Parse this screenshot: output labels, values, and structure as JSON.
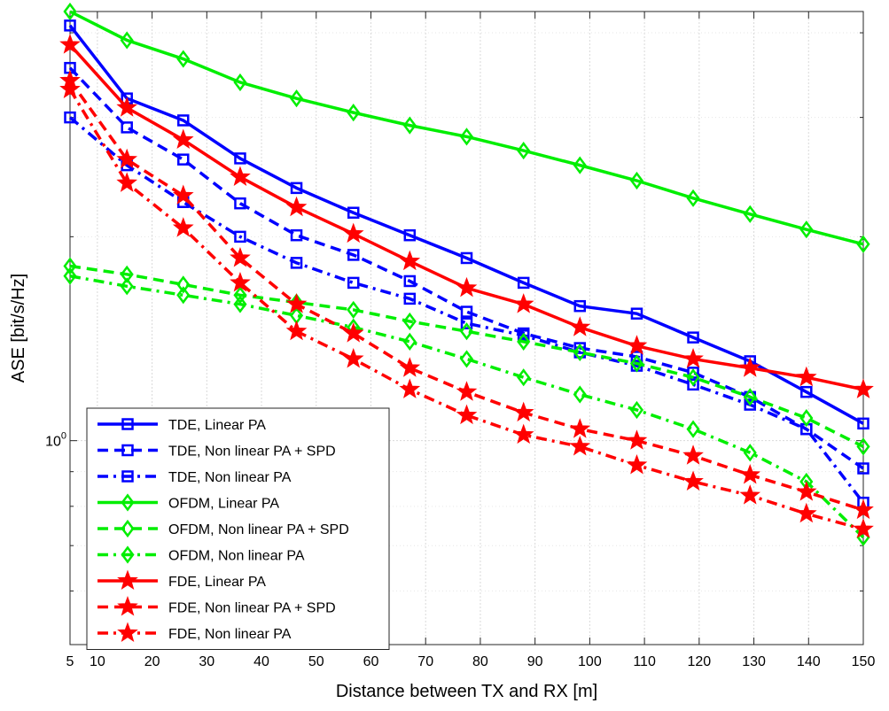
{
  "chart_data": {
    "type": "line",
    "title": "",
    "xlabel": "Distance between TX and RX [m]",
    "ylabel": "ASE [bit/s/Hz]",
    "xscale": "linear",
    "yscale": "log",
    "xlim": [
      5,
      150
    ],
    "ylim": [
      0.5,
      4.3
    ],
    "grid": true,
    "legend_position": "bottom-left",
    "x_ticks": [
      5,
      10,
      20,
      30,
      40,
      50,
      60,
      70,
      80,
      90,
      100,
      110,
      120,
      130,
      140,
      150
    ],
    "x_tick_labels": [
      "5",
      "10",
      "20",
      "30",
      "40",
      "50",
      "60",
      "70",
      "80",
      "90",
      "100",
      "110",
      "120",
      "130",
      "140",
      "150"
    ],
    "y_ticks": [
      1
    ],
    "y_tick_labels": [
      "10"
    ],
    "y_tick_exponent": "0",
    "y_minor_ticks": [
      0.6,
      0.7,
      0.8,
      0.9,
      2,
      3,
      4
    ],
    "x": [
      5,
      15.4,
      25.7,
      36.1,
      46.4,
      56.8,
      67.1,
      77.5,
      87.9,
      98.2,
      108.6,
      118.9,
      129.3,
      139.6,
      150
    ],
    "series": [
      {
        "name": "TDE, Linear PA",
        "color": "#0000ff",
        "linestyle": "solid",
        "marker": "square",
        "values": [
          4.1,
          3.2,
          2.97,
          2.61,
          2.36,
          2.17,
          2.01,
          1.86,
          1.71,
          1.58,
          1.54,
          1.42,
          1.31,
          1.18,
          1.06
        ]
      },
      {
        "name": "TDE, Non linear PA + SPD",
        "color": "#0000ff",
        "linestyle": "dashed",
        "marker": "square",
        "values": [
          3.55,
          2.9,
          2.6,
          2.24,
          2.01,
          1.88,
          1.72,
          1.55,
          1.44,
          1.37,
          1.33,
          1.26,
          1.16,
          1.04,
          0.91
        ]
      },
      {
        "name": "TDE, Non linear PA",
        "color": "#0000ff",
        "linestyle": "dashdot",
        "marker": "square",
        "values": [
          3.0,
          2.55,
          2.25,
          2.0,
          1.83,
          1.71,
          1.62,
          1.49,
          1.43,
          1.35,
          1.29,
          1.21,
          1.13,
          1.04,
          0.81
        ]
      },
      {
        "name": "OFDM, Linear PA",
        "color": "#00ee00",
        "linestyle": "solid",
        "marker": "diamond",
        "values": [
          4.3,
          3.9,
          3.66,
          3.38,
          3.2,
          3.05,
          2.92,
          2.81,
          2.68,
          2.55,
          2.42,
          2.28,
          2.16,
          2.05,
          1.95
        ]
      },
      {
        "name": "OFDM, Non linear PA + SPD",
        "color": "#00ee00",
        "linestyle": "dashed",
        "marker": "diamond",
        "values": [
          1.81,
          1.76,
          1.7,
          1.64,
          1.6,
          1.56,
          1.5,
          1.45,
          1.4,
          1.35,
          1.3,
          1.24,
          1.16,
          1.08,
          0.98
        ]
      },
      {
        "name": "OFDM, Non linear PA",
        "color": "#00ee00",
        "linestyle": "dashdot",
        "marker": "diamond",
        "values": [
          1.75,
          1.69,
          1.64,
          1.59,
          1.53,
          1.47,
          1.4,
          1.32,
          1.24,
          1.17,
          1.11,
          1.04,
          0.96,
          0.87,
          0.72
        ]
      },
      {
        "name": "FDE, Linear PA",
        "color": "#ff0000",
        "linestyle": "solid",
        "marker": "star",
        "values": [
          3.84,
          3.1,
          2.78,
          2.45,
          2.21,
          2.02,
          1.84,
          1.68,
          1.59,
          1.47,
          1.38,
          1.32,
          1.28,
          1.24,
          1.19
        ]
      },
      {
        "name": "FDE, Non linear PA + SPD",
        "color": "#ff0000",
        "linestyle": "dashed",
        "marker": "star",
        "values": [
          3.4,
          2.6,
          2.3,
          1.86,
          1.59,
          1.44,
          1.28,
          1.18,
          1.1,
          1.04,
          1.0,
          0.95,
          0.89,
          0.84,
          0.79
        ]
      },
      {
        "name": "FDE, Non linear PA",
        "color": "#ff0000",
        "linestyle": "dashdot",
        "marker": "star",
        "values": [
          3.3,
          2.4,
          2.06,
          1.71,
          1.45,
          1.32,
          1.19,
          1.09,
          1.02,
          0.98,
          0.92,
          0.87,
          0.83,
          0.78,
          0.74
        ]
      }
    ]
  }
}
